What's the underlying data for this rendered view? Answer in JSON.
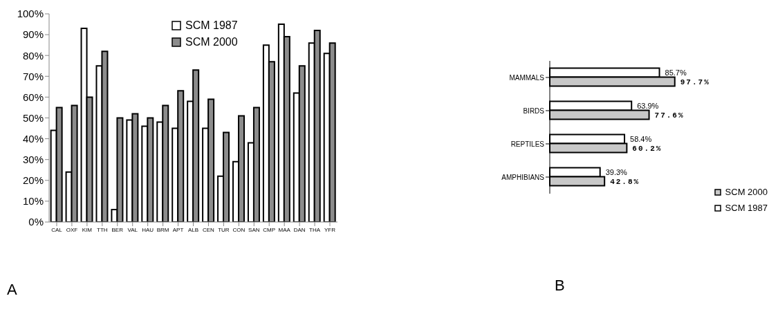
{
  "chart_data": [
    {
      "type": "bar",
      "annotations": [
        "A"
      ],
      "categories": [
        "CAL",
        "OXF",
        "KIM",
        "TTH",
        "BER",
        "VAL",
        "HAU",
        "BRM",
        "APT",
        "ALB",
        "CEN",
        "TUR",
        "CON",
        "SAN",
        "CMP",
        "MAA",
        "DAN",
        "THA",
        "YFR"
      ],
      "series": [
        {
          "name": "SCM 1987",
          "color": "#ffffff",
          "values": [
            44,
            24,
            93,
            75,
            6,
            49,
            46,
            48,
            45,
            58,
            45,
            22,
            29,
            38,
            85,
            95,
            62,
            86,
            81
          ]
        },
        {
          "name": "SCM 2000",
          "color": "#8c8c8c",
          "values": [
            55,
            56,
            60,
            82,
            50,
            52,
            50,
            56,
            63,
            73,
            59,
            43,
            51,
            55,
            77,
            89,
            75,
            92,
            86
          ]
        }
      ],
      "ylim": [
        0,
        100
      ],
      "yticks": [
        {
          "value": 0,
          "label": "0%"
        },
        {
          "value": 10,
          "label": "10%"
        },
        {
          "value": 20,
          "label": "20%"
        },
        {
          "value": 30,
          "label": "30%"
        },
        {
          "value": 40,
          "label": "40%"
        },
        {
          "value": 50,
          "label": "50%"
        },
        {
          "value": 60,
          "label": "60%"
        },
        {
          "value": 70,
          "label": "70%"
        },
        {
          "value": 80,
          "label": "80%"
        },
        {
          "value": 90,
          "label": "90%"
        },
        {
          "value": 100,
          "label": "100%"
        }
      ],
      "grid": false,
      "legend": "top"
    },
    {
      "type": "bar",
      "orientation": "horizontal",
      "annotations": [
        "B"
      ],
      "categories": [
        "MAMMALS",
        "BIRDS",
        "REPTILES",
        "AMPHIBIANS"
      ],
      "series": [
        {
          "name": "SCM 1987",
          "color": "#ffffff",
          "values": [
            85.7,
            63.9,
            58.4,
            39.3
          ],
          "value_labels": [
            "85.7%",
            "63.9%",
            "58.4%",
            "39.3%"
          ]
        },
        {
          "name": "SCM 2000",
          "color": "#c8c8c8",
          "values": [
            97.7,
            77.6,
            60.2,
            42.8
          ],
          "value_labels": [
            "97.7%",
            "77.6%",
            "60.2%",
            "42.8%"
          ]
        }
      ],
      "grid": false,
      "legend": "bottom right"
    }
  ]
}
